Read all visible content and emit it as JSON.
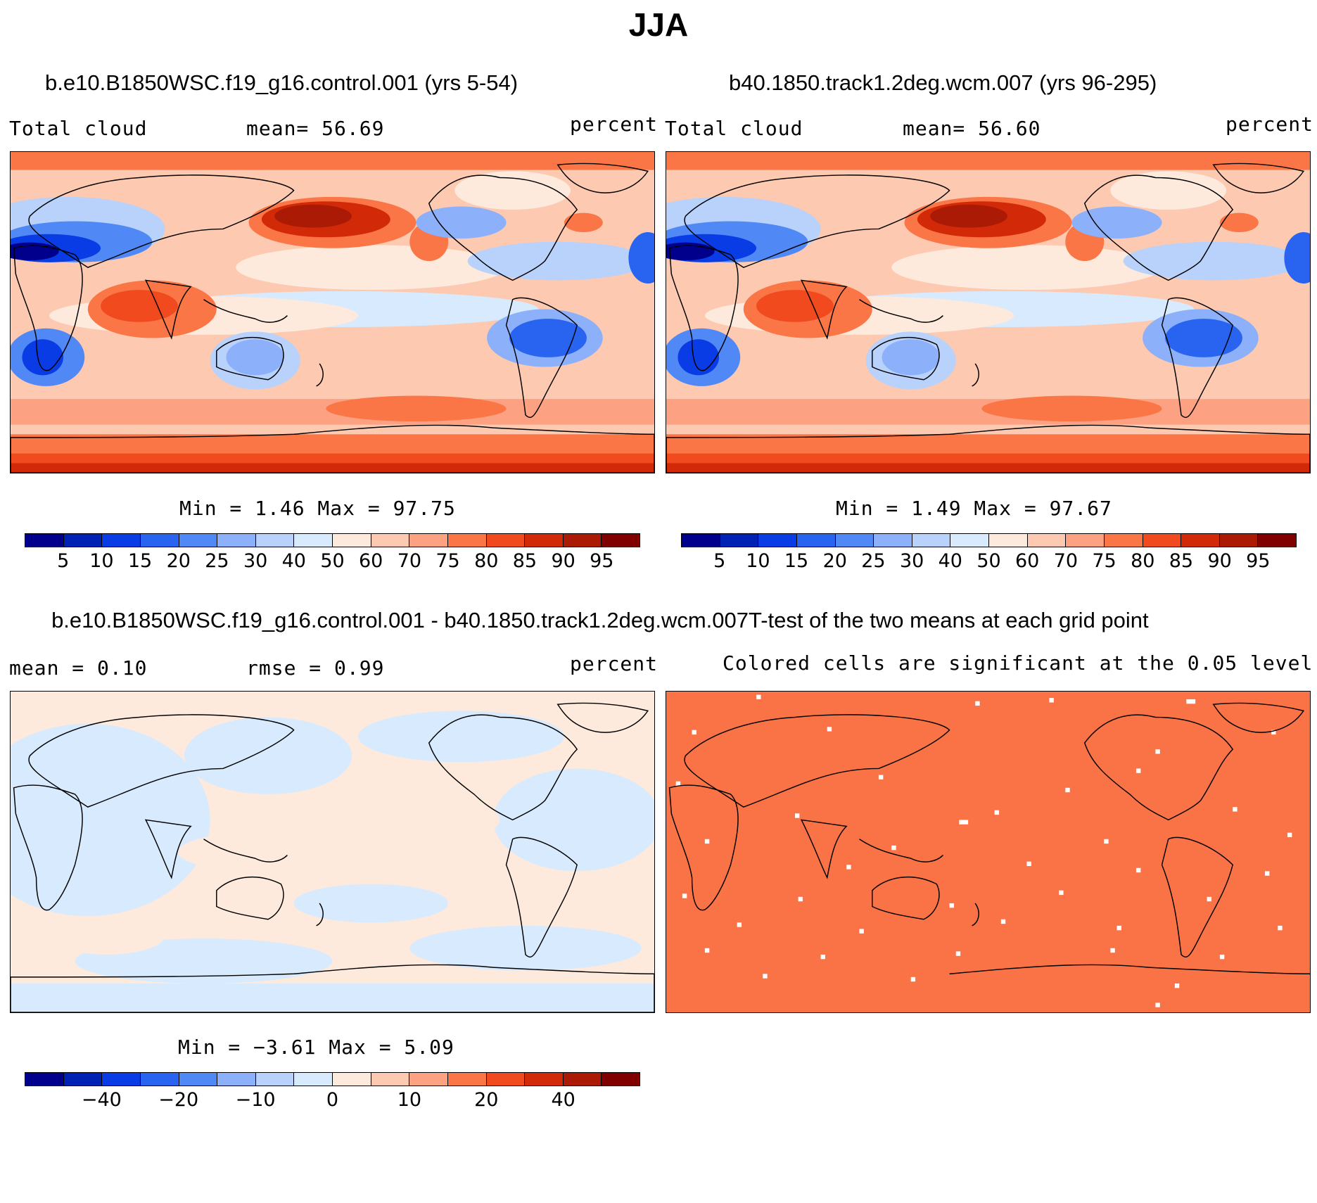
{
  "figure": {
    "title": "JJA"
  },
  "panels": {
    "p1": {
      "title": "b.e10.B1850WSC.f19_g16.control.001 (yrs 5-54)",
      "left_label": "Total cloud",
      "center_label": "mean=   56.69",
      "right_label": "percent",
      "minmax": "Min =    1.46 Max =   97.75"
    },
    "p2": {
      "title": "b40.1850.track1.2deg.wcm.007 (yrs 96-295)",
      "left_label": "Total cloud",
      "center_label": "mean=   56.60",
      "right_label": "percent",
      "minmax": "Min =    1.49 Max =   97.67"
    },
    "p3": {
      "title": "b.e10.B1850WSC.f19_g16.control.001 - b40.1850.track1.2deg.wcm.007",
      "left_label": "mean =     0.10",
      "center_label": "rmse =     0.99",
      "right_label": "percent",
      "minmax": "Min =   −3.61 Max =    5.09"
    },
    "p4": {
      "title": "T-test of the two means at each grid point",
      "subtitle": "Colored cells are significant at the 0.05 level"
    }
  },
  "colorbars": {
    "colors": [
      "#00008c",
      "#0022b4",
      "#0a3ce6",
      "#2864f0",
      "#5088f5",
      "#8cb0fa",
      "#b8d2fc",
      "#d8eafd",
      "#fdeadc",
      "#fdc9b0",
      "#fca282",
      "#fa7646",
      "#f04a1e",
      "#d22a08",
      "#ab1a05",
      "#800000"
    ],
    "abs_ticks": [
      "5",
      "10",
      "15",
      "20",
      "25",
      "30",
      "40",
      "50",
      "60",
      "70",
      "75",
      "80",
      "85",
      "90",
      "95"
    ],
    "diff_ticks": [
      "−40",
      "−20",
      "−10",
      "0",
      "10",
      "20",
      "40"
    ]
  },
  "legend_colors": {
    "significance": "#fa7346",
    "diff_negative": "#d8eafd",
    "diff_positive": "#fdeadc"
  }
}
